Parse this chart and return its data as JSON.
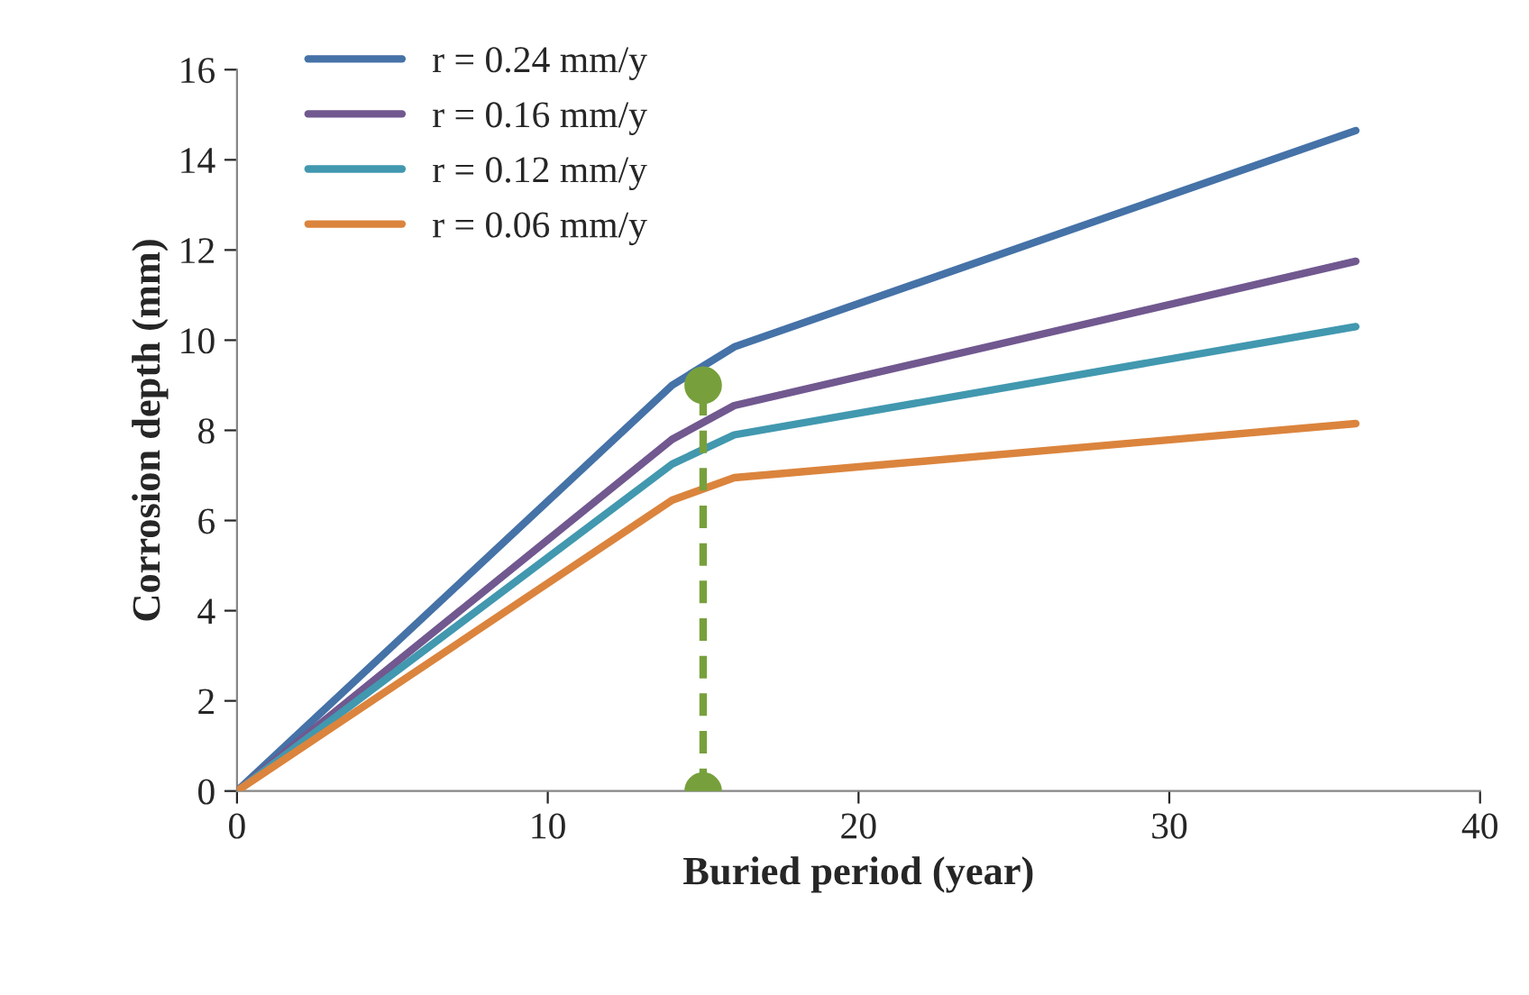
{
  "chart_data": {
    "type": "line",
    "xlabel": "Buried period (year)",
    "ylabel": "Corrosion depth (mm)",
    "xlim": [
      0,
      40
    ],
    "xticks": [
      0,
      10,
      20,
      30,
      40
    ],
    "ylim": [
      0,
      16
    ],
    "yticks": [
      0,
      2,
      4,
      6,
      8,
      10,
      12,
      14,
      16
    ],
    "grid": false,
    "legend": "top left",
    "marker": "none",
    "line_style": "solid",
    "series": [
      {
        "name": "r = 0.24 mm/y",
        "color": "#4572a7",
        "x": [
          0,
          14,
          16,
          36
        ],
        "values": [
          0,
          9.0,
          9.85,
          14.65
        ]
      },
      {
        "name": "r = 0.16 mm/y",
        "color": "#71588f",
        "x": [
          0,
          14,
          16,
          36
        ],
        "values": [
          0,
          7.8,
          8.55,
          11.75
        ]
      },
      {
        "name": "r = 0.12 mm/y",
        "color": "#4198af",
        "x": [
          0,
          14,
          16,
          36
        ],
        "values": [
          0,
          7.25,
          7.9,
          10.3
        ]
      },
      {
        "name": "r = 0.06 mm/y",
        "color": "#db843d",
        "x": [
          0,
          14,
          16,
          36
        ],
        "values": [
          0,
          6.45,
          6.95,
          8.15
        ]
      },
      {
        "color": "#77a03c",
        "x": [
          15,
          15
        ],
        "values": [
          0,
          9.0
        ],
        "marker": "circle",
        "line_style": "dashed"
      }
    ]
  }
}
